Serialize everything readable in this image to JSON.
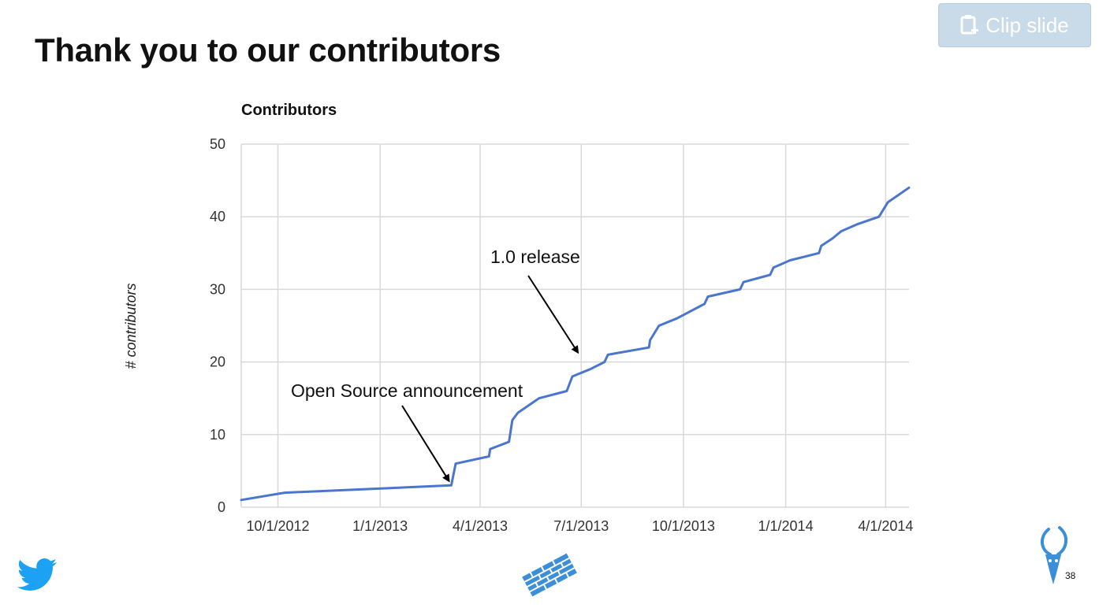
{
  "slide": {
    "title": "Thank you to our contributors",
    "clip_button_label": "Clip slide",
    "slide_number": "38"
  },
  "icons": {
    "clip": "clipboard-plus-icon",
    "left_logo": "twitter-bird-icon",
    "center_logo": "blue-grid-logo-icon",
    "right_logo": "antelope-head-logo-icon"
  },
  "colors": {
    "series": "#4a76cf",
    "gridline": "#d9d9d9",
    "clip_button_bg": "#c9dbe8",
    "twitter_blue": "#1da1f2",
    "logo_blue": "#3a8fd8"
  },
  "chart_data": {
    "type": "line",
    "title": "Contributors",
    "ylabel": "# contributors",
    "xlabel": "",
    "ylim": [
      0,
      50
    ],
    "yticks": [
      0,
      10,
      20,
      30,
      40,
      50
    ],
    "xlim": [
      "2012-08-29",
      "2014-04-22"
    ],
    "xticks": [
      {
        "date": "2012-10-01",
        "label": "10/1/2012"
      },
      {
        "date": "2013-01-01",
        "label": "1/1/2013"
      },
      {
        "date": "2013-04-01",
        "label": "4/1/2013"
      },
      {
        "date": "2013-07-01",
        "label": "7/1/2013"
      },
      {
        "date": "2013-10-01",
        "label": "10/1/2013"
      },
      {
        "date": "2014-01-01",
        "label": "1/1/2014"
      },
      {
        "date": "2014-04-01",
        "label": "4/1/2014"
      }
    ],
    "grid": true,
    "legend": "none",
    "series": [
      {
        "points": [
          [
            "2012-08-29",
            1
          ],
          [
            "2012-10-07",
            2
          ],
          [
            "2013-03-06",
            3
          ],
          [
            "2013-03-10",
            6
          ],
          [
            "2013-04-09",
            7
          ],
          [
            "2013-04-10",
            8
          ],
          [
            "2013-04-27",
            9
          ],
          [
            "2013-04-30",
            12
          ],
          [
            "2013-05-05",
            13
          ],
          [
            "2013-05-24",
            15
          ],
          [
            "2013-06-18",
            16
          ],
          [
            "2013-06-23",
            18
          ],
          [
            "2013-07-09",
            19
          ],
          [
            "2013-07-22",
            20
          ],
          [
            "2013-07-25",
            21
          ],
          [
            "2013-08-31",
            22
          ],
          [
            "2013-09-01",
            23
          ],
          [
            "2013-09-09",
            25
          ],
          [
            "2013-09-25",
            26
          ],
          [
            "2013-10-20",
            28
          ],
          [
            "2013-10-23",
            29
          ],
          [
            "2013-11-21",
            30
          ],
          [
            "2013-11-24",
            31
          ],
          [
            "2013-12-18",
            32
          ],
          [
            "2013-12-21",
            33
          ],
          [
            "2014-01-05",
            34
          ],
          [
            "2014-01-31",
            35
          ],
          [
            "2014-02-02",
            36
          ],
          [
            "2014-02-12",
            37
          ],
          [
            "2014-02-20",
            38
          ],
          [
            "2014-03-07",
            39
          ],
          [
            "2014-03-26",
            40
          ],
          [
            "2014-04-03",
            42
          ],
          [
            "2014-04-22",
            44
          ]
        ]
      }
    ],
    "annotations": [
      {
        "text": "1.0 release",
        "target": [
          "2013-06-28",
          21.3
        ]
      },
      {
        "text": "Open Source announcement",
        "target": [
          "2013-03-04",
          3.6
        ]
      }
    ]
  }
}
